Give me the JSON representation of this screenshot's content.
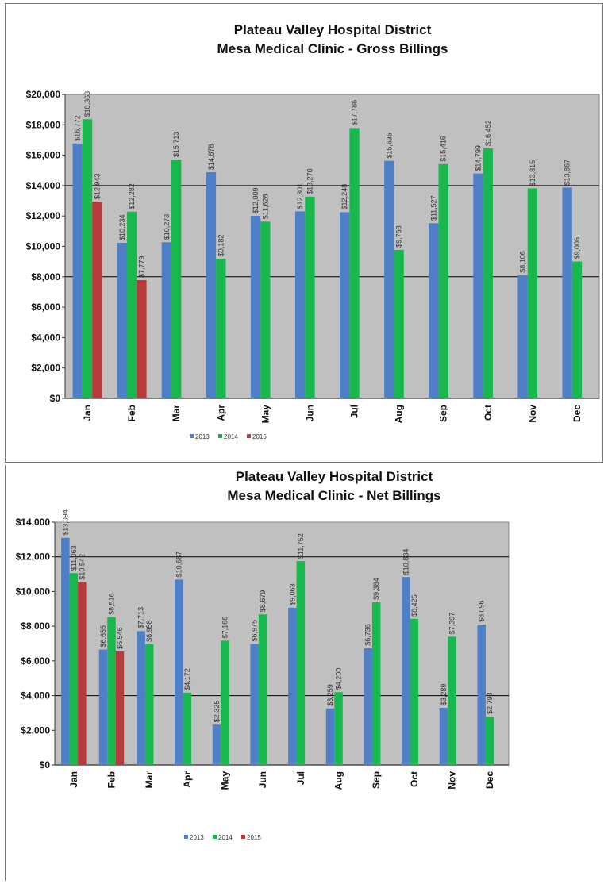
{
  "chart_data": [
    {
      "type": "bar",
      "title": "Plateau Valley Hospital District",
      "subtitle": "Mesa Medical Clinic - Gross Billings",
      "categories": [
        "Jan",
        "Feb",
        "Mar",
        "Apr",
        "May",
        "Jun",
        "Jul",
        "Aug",
        "Sep",
        "Oct",
        "Nov",
        "Dec"
      ],
      "ylim": [
        0,
        20000
      ],
      "yticks": [
        0,
        2000,
        4000,
        6000,
        8000,
        10000,
        12000,
        14000,
        16000,
        18000,
        20000
      ],
      "ytick_labels": [
        "$0",
        "$2,000",
        "$4,000",
        "$6,000",
        "$8,000",
        "$10,000",
        "$12,000",
        "$14,000",
        "$16,000",
        "$18,000",
        "$20,000"
      ],
      "grid_lines": [
        8000,
        14000
      ],
      "legend_position": "bottom",
      "series": [
        {
          "name": "2013",
          "color": "#4f7fc6",
          "values": [
            16772,
            10234,
            10273,
            14878,
            12009,
            12301,
            12248,
            15635,
            11527,
            14799,
            8106,
            13867
          ],
          "labels": [
            "$16,772",
            "$10,234",
            "$10,273",
            "$14,878",
            "$12,009",
            "$12,301",
            "$12,248",
            "$15,635",
            "$11,527",
            "$14,799",
            "$8,106",
            "$13,867"
          ]
        },
        {
          "name": "2014",
          "color": "#18b84f",
          "values": [
            18363,
            12282,
            15713,
            9182,
            11628,
            13270,
            17786,
            9768,
            15416,
            16452,
            13815,
            9006
          ],
          "labels": [
            "$18,363",
            "$12,282",
            "$15,713",
            "$9,182",
            "$11,628",
            "$13,270",
            "$17,786",
            "$9,768",
            "$15,416",
            "$16,452",
            "$13,815",
            "$9,006"
          ]
        },
        {
          "name": "2015",
          "color": "#b83a3a",
          "values": [
            12943,
            7779,
            null,
            null,
            null,
            null,
            null,
            null,
            null,
            null,
            null,
            null
          ],
          "labels": [
            "$12,943",
            "$7,779",
            "",
            "",
            "",
            "",
            "",
            "",
            "",
            "",
            "",
            ""
          ]
        }
      ]
    },
    {
      "type": "bar",
      "title": "Plateau Valley Hospital District",
      "subtitle": "Mesa Medical Clinic - Net Billings",
      "categories": [
        "Jan",
        "Feb",
        "Mar",
        "Apr",
        "May",
        "Jun",
        "Jul",
        "Aug",
        "Sep",
        "Oct",
        "Nov",
        "Dec"
      ],
      "ylim": [
        0,
        14000
      ],
      "yticks": [
        0,
        2000,
        4000,
        6000,
        8000,
        10000,
        12000,
        14000
      ],
      "ytick_labels": [
        "$0",
        "$2,000",
        "$4,000",
        "$6,000",
        "$8,000",
        "$10,000",
        "$12,000",
        "$14,000"
      ],
      "grid_lines": [
        4000,
        12000
      ],
      "legend_position": "bottom",
      "series": [
        {
          "name": "2013",
          "color": "#4f7fc6",
          "values": [
            13094,
            6655,
            7713,
            10687,
            2325,
            6975,
            9063,
            3259,
            6736,
            10834,
            3289,
            8096
          ],
          "labels": [
            "$13,094",
            "$6,655",
            "$7,713",
            "$10,687",
            "$2,325",
            "$6,975",
            "$9,063",
            "$3,259",
            "$6,736",
            "$10,834",
            "$3,289",
            "$8,096"
          ]
        },
        {
          "name": "2014",
          "color": "#18b84f",
          "values": [
            11063,
            8516,
            6958,
            4172,
            7166,
            8679,
            11752,
            4200,
            9384,
            8426,
            7397,
            2793
          ],
          "labels": [
            "$11,063",
            "$8,516",
            "$6,958",
            "$4,172",
            "$7,166",
            "$8,679",
            "$11,752",
            "$4,200",
            "$9,384",
            "$8,426",
            "$7,397",
            "$2,793"
          ]
        },
        {
          "name": "2015",
          "color": "#b83a3a",
          "values": [
            10542,
            6546,
            null,
            null,
            null,
            null,
            null,
            null,
            null,
            null,
            null,
            null
          ],
          "labels": [
            "$10,542",
            "$6,546",
            "",
            "",
            "",
            "",
            "",
            "",
            "",
            "",
            "",
            ""
          ]
        }
      ]
    }
  ]
}
